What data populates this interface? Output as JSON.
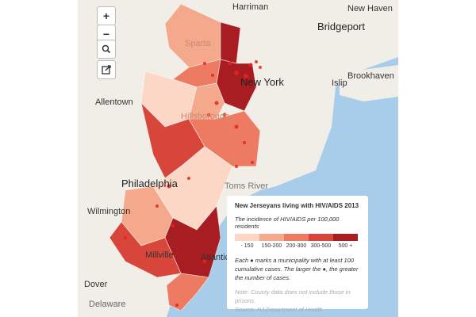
{
  "controls": {
    "zoom_in": "+",
    "zoom_out": "−"
  },
  "places": {
    "harriman": "Harriman",
    "new_haven": "New Haven",
    "bridgeport": "Bridgeport",
    "sparta": "Sparta",
    "new_york": "New York",
    "islip": "Islip",
    "brookhaven": "Brookhaven",
    "allentown": "Allentown",
    "hillsborough": "Hillsborough",
    "philadelphia": "Philadelphia",
    "toms_river": "Toms River",
    "wilmington": "Wilmington",
    "millville": "Millville",
    "atlantic_city": "Atlantic City",
    "dover": "Dover",
    "delaware": "Delaware"
  },
  "legend": {
    "title": "New Jerseyans living with HIV/AIDS 2013",
    "subtitle": "The incidence of HIV/AIDS per 100,000 residents",
    "bins": [
      {
        "label": "- 150",
        "color": "#fcd7c6"
      },
      {
        "label": "150-200",
        "color": "#f5a98c"
      },
      {
        "label": "200-300",
        "color": "#ec7b62"
      },
      {
        "label": "300-500",
        "color": "#d8453b"
      },
      {
        "label": "500 +",
        "color": "#a81d22"
      }
    ],
    "description": "Each ● marks a municipality with at least 100 cumulative cases. The larger the ●, the greater the number of cases.",
    "note": "Note: County data does not include those in prisons.",
    "source": "Source: NJ Department of Health"
  }
}
